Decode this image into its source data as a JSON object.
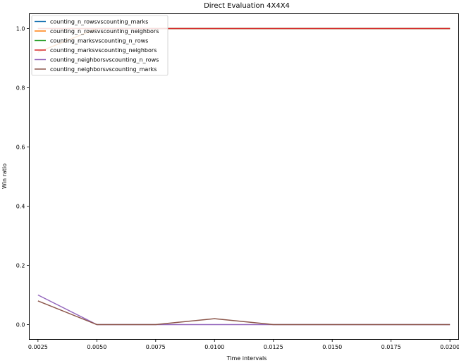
{
  "chart_data": {
    "type": "line",
    "title": "Direct Evaluation 4X4X4",
    "xlabel": "Time intervals",
    "ylabel": "Win ratio",
    "x": [
      0.0025,
      0.005,
      0.0075,
      0.01,
      0.0125,
      0.015,
      0.0175,
      0.02
    ],
    "xticks": [
      "0.0025",
      "0.0050",
      "0.0075",
      "0.0100",
      "0.0125",
      "0.0150",
      "0.0175",
      "0.0200"
    ],
    "xlim": [
      0.00213,
      0.02037
    ],
    "yticks": [
      "0.0",
      "0.2",
      "0.4",
      "0.6",
      "0.8",
      "1.0"
    ],
    "ylim": [
      -0.05,
      1.05
    ],
    "legend_position": "upper-left",
    "series": [
      {
        "name": "counting_n_rowsvscounting_marks",
        "color": "#1f77b4",
        "values": [
          0.92,
          1.0,
          1.0,
          1.0,
          1.0,
          1.0,
          1.0,
          1.0
        ]
      },
      {
        "name": "counting_n_rowsvscounting_neighbors",
        "color": "#ff7f0e",
        "values": [
          0.92,
          1.0,
          1.0,
          1.0,
          1.0,
          1.0,
          1.0,
          1.0
        ]
      },
      {
        "name": "counting_marksvscounting_n_rows",
        "color": "#2ca02c",
        "values": [
          1.0,
          1.0,
          1.0,
          1.0,
          1.0,
          1.0,
          1.0,
          1.0
        ]
      },
      {
        "name": "counting_marksvscounting_neighbors",
        "color": "#d62728",
        "values": [
          1.0,
          1.0,
          1.0,
          1.0,
          1.0,
          1.0,
          1.0,
          1.0
        ]
      },
      {
        "name": "counting_neighborsvscounting_n_rows",
        "color": "#9467bd",
        "values": [
          0.1,
          0.0,
          0.0,
          0.0,
          0.0,
          0.0,
          0.0,
          0.0
        ]
      },
      {
        "name": "counting_neighborsvscounting_marks",
        "color": "#8c564b",
        "values": [
          0.08,
          0.0,
          0.0,
          0.02,
          0.0,
          0.0,
          0.0,
          0.0
        ]
      }
    ]
  }
}
